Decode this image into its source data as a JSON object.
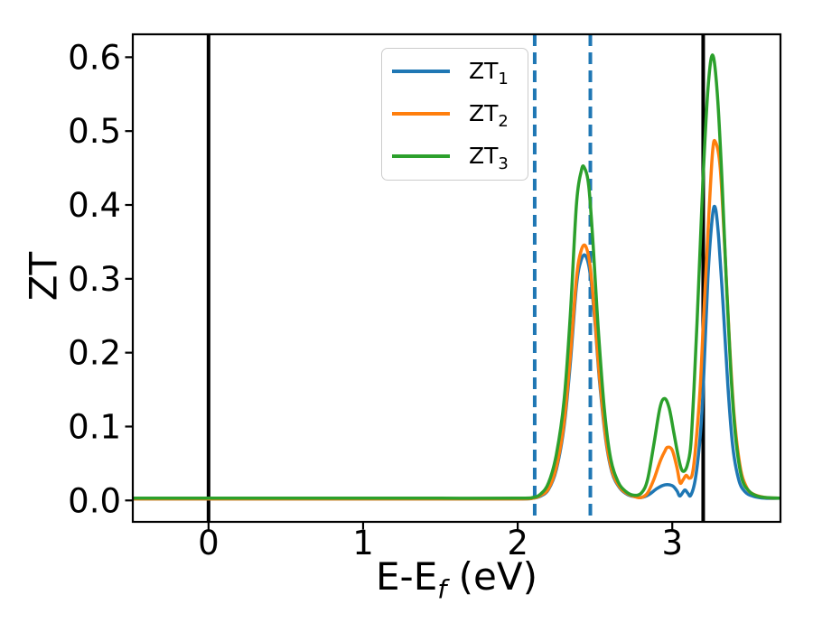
{
  "figure": {
    "background": "#ffffff",
    "xlabel": {
      "main": "E-E",
      "sub": "f",
      "rest": " (eV)"
    },
    "ylabel": "ZT"
  },
  "legend": {
    "items": [
      {
        "base": "ZT",
        "sub": "1",
        "color": "#1f77b4"
      },
      {
        "base": "ZT",
        "sub": "2",
        "color": "#ff7f0e"
      },
      {
        "base": "ZT",
        "sub": "3",
        "color": "#2ca02c"
      }
    ]
  },
  "chart_data": {
    "type": "line",
    "title": "",
    "xlabel": "E-E_f (eV)",
    "ylabel": "ZT",
    "xlim": [
      -0.49,
      3.7
    ],
    "ylim": [
      -0.029,
      0.631
    ],
    "xticks": [
      0,
      1,
      2,
      3
    ],
    "xtick_labels": [
      "0",
      "1",
      "2",
      "3"
    ],
    "yticks": [
      0.0,
      0.1,
      0.2,
      0.3,
      0.4,
      0.5,
      0.6
    ],
    "ytick_labels": [
      "0.0",
      "0.1",
      "0.2",
      "0.3",
      "0.4",
      "0.5",
      "0.6"
    ],
    "grid": false,
    "legend_position": "upper center",
    "axis_color": "#000000",
    "vlines_solid": [
      {
        "x": 0.0,
        "color": "#000000",
        "width": 4
      },
      {
        "x": 3.2,
        "color": "#000000",
        "width": 4
      }
    ],
    "vlines_dashed": [
      {
        "x": 2.11,
        "color": "#1f77b4",
        "width": 4
      },
      {
        "x": 2.47,
        "color": "#1f77b4",
        "width": 4
      }
    ],
    "series": [
      {
        "name": "ZT1",
        "label": "ZT1",
        "color": "#1f77b4",
        "x": [
          -0.49,
          0.0,
          0.5,
          1.0,
          1.5,
          2.0,
          2.1,
          2.15,
          2.2,
          2.25,
          2.3,
          2.34,
          2.38,
          2.41,
          2.44,
          2.47,
          2.5,
          2.53,
          2.57,
          2.61,
          2.66,
          2.71,
          2.76,
          2.8,
          2.85,
          2.9,
          2.95,
          3.0,
          3.03,
          3.05,
          3.08,
          3.1,
          3.12,
          3.15,
          3.18,
          3.2,
          3.23,
          3.26,
          3.28,
          3.3,
          3.33,
          3.36,
          3.39,
          3.43,
          3.47,
          3.52,
          3.6,
          3.7
        ],
        "y": [
          0.002,
          0.002,
          0.002,
          0.002,
          0.002,
          0.002,
          0.003,
          0.006,
          0.015,
          0.042,
          0.1,
          0.185,
          0.29,
          0.325,
          0.331,
          0.305,
          0.24,
          0.16,
          0.082,
          0.038,
          0.017,
          0.008,
          0.005,
          0.004,
          0.008,
          0.016,
          0.021,
          0.02,
          0.013,
          0.006,
          0.014,
          0.01,
          0.007,
          0.03,
          0.085,
          0.15,
          0.3,
          0.385,
          0.395,
          0.355,
          0.26,
          0.155,
          0.075,
          0.028,
          0.012,
          0.006,
          0.003,
          0.003
        ]
      },
      {
        "name": "ZT2",
        "label": "ZT2",
        "color": "#ff7f0e",
        "x": [
          -0.49,
          0.0,
          0.5,
          1.0,
          1.5,
          2.0,
          2.1,
          2.15,
          2.2,
          2.25,
          2.3,
          2.34,
          2.38,
          2.41,
          2.44,
          2.47,
          2.5,
          2.53,
          2.57,
          2.61,
          2.66,
          2.71,
          2.76,
          2.8,
          2.84,
          2.88,
          2.92,
          2.95,
          2.97,
          3.0,
          3.03,
          3.05,
          3.07,
          3.09,
          3.11,
          3.13,
          3.15,
          3.18,
          3.2,
          3.23,
          3.26,
          3.28,
          3.31,
          3.34,
          3.37,
          3.4,
          3.44,
          3.48,
          3.52,
          3.6,
          3.7
        ],
        "y": [
          0.002,
          0.002,
          0.002,
          0.002,
          0.002,
          0.002,
          0.003,
          0.007,
          0.016,
          0.045,
          0.105,
          0.195,
          0.3,
          0.338,
          0.344,
          0.315,
          0.245,
          0.165,
          0.085,
          0.04,
          0.018,
          0.009,
          0.005,
          0.004,
          0.01,
          0.028,
          0.052,
          0.066,
          0.072,
          0.068,
          0.045,
          0.024,
          0.028,
          0.034,
          0.03,
          0.036,
          0.07,
          0.15,
          0.235,
          0.36,
          0.47,
          0.485,
          0.45,
          0.34,
          0.215,
          0.115,
          0.045,
          0.018,
          0.009,
          0.004,
          0.003
        ]
      },
      {
        "name": "ZT3",
        "label": "ZT3",
        "color": "#2ca02c",
        "x": [
          -0.49,
          0.0,
          0.5,
          1.0,
          1.5,
          2.0,
          2.1,
          2.15,
          2.2,
          2.25,
          2.3,
          2.34,
          2.38,
          2.41,
          2.43,
          2.46,
          2.49,
          2.52,
          2.56,
          2.6,
          2.65,
          2.7,
          2.75,
          2.8,
          2.84,
          2.88,
          2.92,
          2.95,
          2.98,
          3.01,
          3.04,
          3.06,
          3.08,
          3.1,
          3.12,
          3.14,
          3.16,
          3.18,
          3.2,
          3.23,
          3.26,
          3.29,
          3.32,
          3.35,
          3.38,
          3.41,
          3.45,
          3.5,
          3.55,
          3.6,
          3.7
        ],
        "y": [
          0.003,
          0.003,
          0.003,
          0.003,
          0.003,
          0.003,
          0.004,
          0.009,
          0.024,
          0.062,
          0.135,
          0.25,
          0.4,
          0.445,
          0.451,
          0.425,
          0.34,
          0.235,
          0.125,
          0.058,
          0.025,
          0.012,
          0.007,
          0.01,
          0.028,
          0.075,
          0.125,
          0.138,
          0.125,
          0.092,
          0.058,
          0.042,
          0.04,
          0.05,
          0.075,
          0.15,
          0.24,
          0.34,
          0.44,
          0.555,
          0.603,
          0.555,
          0.44,
          0.295,
          0.17,
          0.085,
          0.03,
          0.012,
          0.006,
          0.004,
          0.003
        ]
      }
    ]
  }
}
